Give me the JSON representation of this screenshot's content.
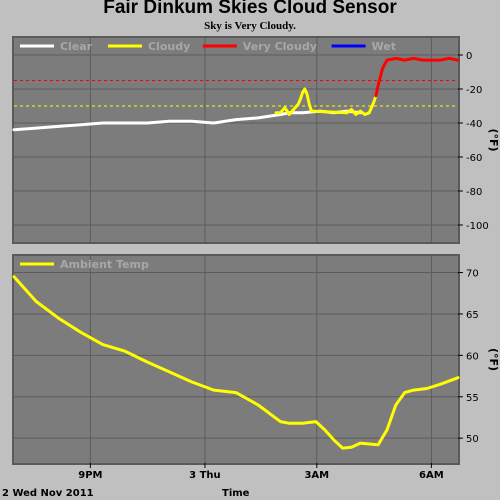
{
  "title": "Fair Dinkum Skies Cloud Sensor",
  "subtitle": "Sky is Very Cloudy.",
  "footer": {
    "date": "2 Wed Nov 2011",
    "xlabel": "Time"
  },
  "colors": {
    "background": "#c0c0c0",
    "plot_bg": "#7c7c7c",
    "clear": "#ffffff",
    "cloudy": "#ffff00",
    "very_cloudy": "#ff0000",
    "wet": "#0000ff",
    "ambient": "#ffff00"
  },
  "chart_data": [
    {
      "type": "line",
      "name": "sky-temperature",
      "ylabel": "(°F)",
      "ylim": [
        -110,
        10
      ],
      "yticks": [
        0,
        -20,
        -40,
        -60,
        -80,
        -100
      ],
      "ytick_labels": [
        "0",
        "-20",
        "-40",
        "-60",
        "-80",
        "-100"
      ],
      "xlim": [
        0,
        1
      ],
      "grid": true,
      "legend": {
        "placement": "top-left",
        "entries": [
          {
            "label": "Clear",
            "color": "#ffffff"
          },
          {
            "label": "Cloudy",
            "color": "#ffff00"
          },
          {
            "label": "Very Cloudy",
            "color": "#ff0000"
          },
          {
            "label": "Wet",
            "color": "#0000ff"
          }
        ]
      },
      "thresholds": [
        {
          "value": -15,
          "color": "#ff0000"
        },
        {
          "value": -30,
          "color": "#ffff00"
        }
      ],
      "series": [
        {
          "name": "Clear",
          "color": "#ffffff",
          "x": [
            0,
            0.05,
            0.1,
            0.15,
            0.2,
            0.25,
            0.3,
            0.35,
            0.4,
            0.45,
            0.5,
            0.55,
            0.6,
            0.62,
            0.65,
            0.69,
            0.72,
            0.75,
            0.78
          ],
          "y": [
            -44,
            -43,
            -42,
            -41,
            -40,
            -40,
            -40,
            -39,
            -39,
            -40,
            -38,
            -37,
            -35,
            -34,
            -34,
            -33,
            -34,
            -33,
            -34
          ]
        },
        {
          "name": "Cloudy",
          "color": "#ffff00",
          "x": [
            0.59,
            0.6,
            0.61,
            0.62,
            0.63,
            0.64,
            0.645,
            0.65,
            0.655,
            0.66,
            0.665,
            0.67,
            0.75,
            0.76,
            0.77,
            0.78,
            0.79,
            0.8,
            0.81,
            0.815
          ],
          "y": [
            -34,
            -34,
            -31,
            -35,
            -32,
            -29,
            -26,
            -22,
            -20,
            -23,
            -29,
            -33,
            -34,
            -32,
            -35,
            -33,
            -35,
            -34,
            -28,
            -24
          ]
        },
        {
          "name": "Very Cloudy",
          "color": "#ff0000",
          "x": [
            0.815,
            0.82,
            0.83,
            0.84,
            0.86,
            0.88,
            0.9,
            0.92,
            0.94,
            0.96,
            0.98,
            1.0
          ],
          "y": [
            -24,
            -18,
            -8,
            -3,
            -2,
            -3,
            -2,
            -3,
            -3,
            -3,
            -2,
            -3
          ]
        }
      ]
    },
    {
      "type": "line",
      "name": "ambient-temperature",
      "ylabel": "(°F)",
      "ylim": [
        47,
        72
      ],
      "yticks": [
        50,
        55,
        60,
        65,
        70
      ],
      "ytick_labels": [
        "50",
        "55",
        "60",
        "65",
        "70"
      ],
      "xlim": [
        0,
        1
      ],
      "xticks": [
        0.172,
        0.43,
        0.682,
        0.94
      ],
      "xtick_labels": [
        "9PM",
        "3 Thu",
        "3AM",
        "6AM"
      ],
      "grid": true,
      "legend": {
        "placement": "top-left",
        "entries": [
          {
            "label": "Ambient Temp",
            "color": "#ffff00"
          }
        ]
      },
      "series": [
        {
          "name": "Ambient Temp",
          "color": "#ffff00",
          "x": [
            0,
            0.05,
            0.1,
            0.15,
            0.2,
            0.25,
            0.3,
            0.35,
            0.4,
            0.45,
            0.5,
            0.55,
            0.6,
            0.62,
            0.65,
            0.68,
            0.7,
            0.72,
            0.74,
            0.76,
            0.78,
            0.8,
            0.82,
            0.84,
            0.86,
            0.88,
            0.9,
            0.93,
            0.96,
            1.0
          ],
          "y": [
            69.5,
            66.5,
            64.5,
            62.8,
            61.3,
            60.5,
            59.2,
            58,
            56.8,
            55.8,
            55.5,
            54,
            52,
            51.8,
            51.8,
            52,
            51,
            49.8,
            48.8,
            48.9,
            49.4,
            49.3,
            49.2,
            51,
            54,
            55.5,
            55.8,
            56,
            56.5,
            57.3
          ]
        }
      ]
    }
  ]
}
